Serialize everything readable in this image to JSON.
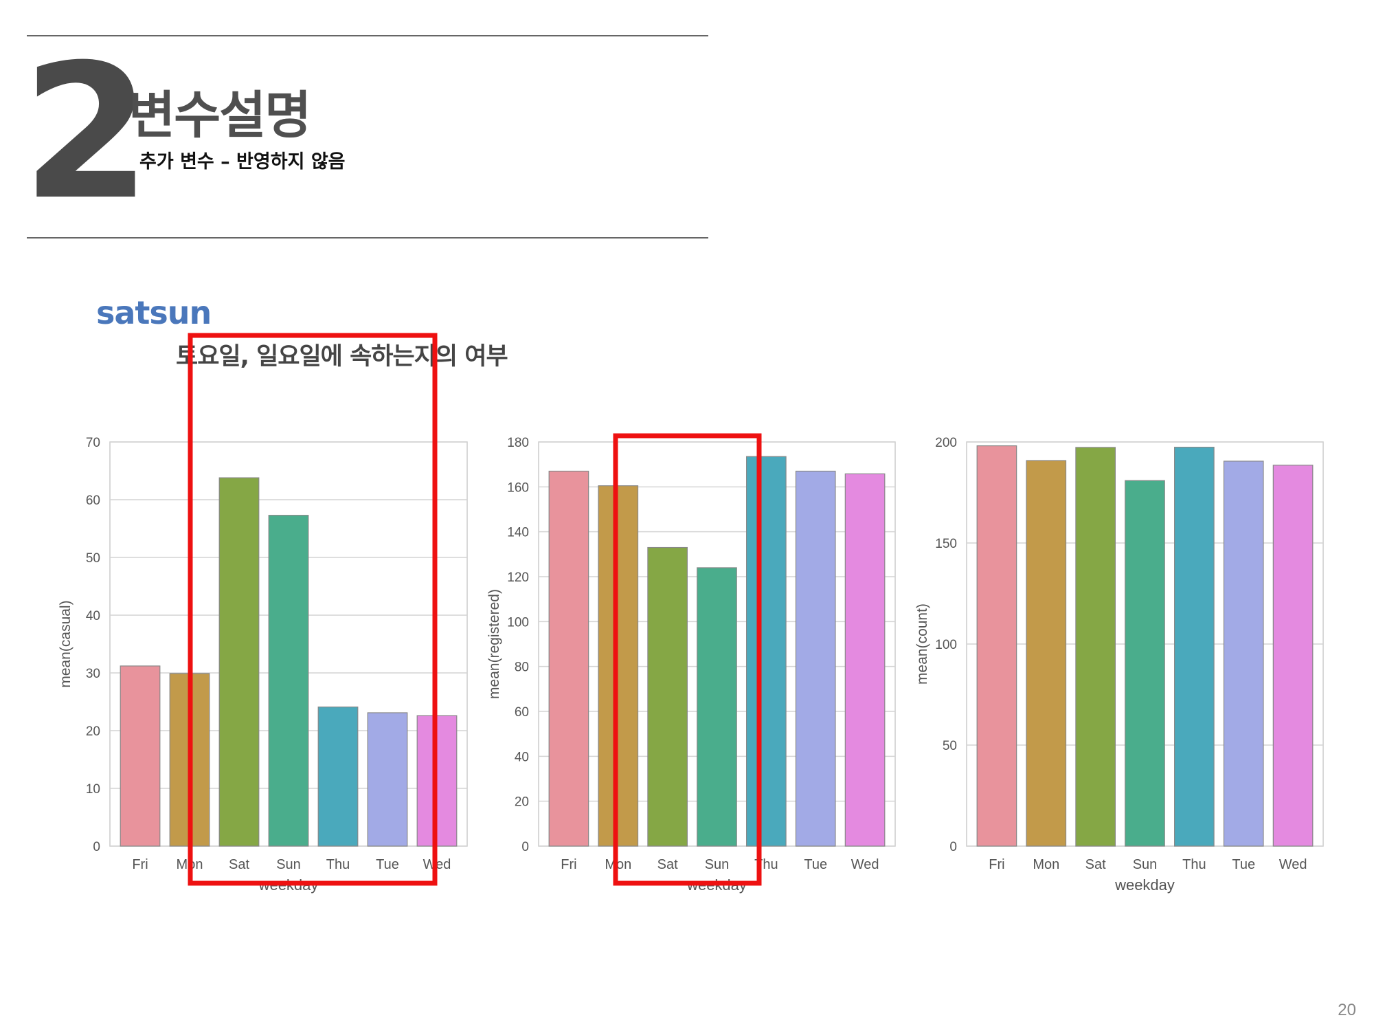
{
  "header": {
    "section_number": "2",
    "title": "변수설명",
    "subtitle": "추가 변수 – 반영하지 않음"
  },
  "variable": {
    "name": "satsun",
    "description": "토요일, 일요일에 속하는지의 여부"
  },
  "page_number": "20",
  "colors": {
    "accent": "#4a77bb",
    "highlight": "#ee1111",
    "bars": [
      "#e8939c",
      "#c29a4a",
      "#85a745",
      "#4aad8c",
      "#4aa9bc",
      "#a2aae6",
      "#e48ae0"
    ]
  },
  "chart_data": [
    {
      "type": "bar",
      "categories": [
        "Fri",
        "Mon",
        "Sat",
        "Sun",
        "Thu",
        "Tue",
        "Wed"
      ],
      "values": [
        31.2,
        29.9,
        63.8,
        57.3,
        24.1,
        23.1,
        22.6
      ],
      "title": "",
      "xlabel": "weekday",
      "ylabel": "mean(casual)",
      "ylim": [
        0,
        70
      ],
      "yticks": [
        0,
        10,
        20,
        30,
        40,
        50,
        60,
        70
      ],
      "highlight": [
        "Sat",
        "Sun"
      ]
    },
    {
      "type": "bar",
      "categories": [
        "Fri",
        "Mon",
        "Sat",
        "Sun",
        "Thu",
        "Tue",
        "Wed"
      ],
      "values": [
        167,
        160.5,
        133,
        124,
        173.5,
        167,
        165.8
      ],
      "title": "",
      "xlabel": "weekday",
      "ylabel": "mean(registered)",
      "ylim": [
        0,
        180
      ],
      "yticks": [
        0,
        20,
        40,
        60,
        80,
        100,
        120,
        140,
        160,
        180
      ],
      "highlight": [
        "Sat",
        "Sun"
      ]
    },
    {
      "type": "bar",
      "categories": [
        "Fri",
        "Mon",
        "Sat",
        "Sun",
        "Thu",
        "Tue",
        "Wed"
      ],
      "values": [
        198.1,
        190.8,
        197.3,
        180.9,
        197.4,
        190.5,
        188.5
      ],
      "title": "",
      "xlabel": "weekday",
      "ylabel": "mean(count)",
      "ylim": [
        0,
        200
      ],
      "yticks": [
        0,
        50,
        100,
        150,
        200
      ],
      "highlight": []
    }
  ]
}
